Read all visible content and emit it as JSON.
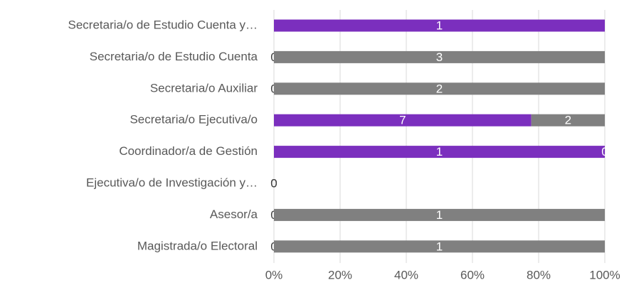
{
  "chart_data": {
    "type": "bar",
    "orientation": "horizontal",
    "stacking": "percent",
    "categories": [
      "Secretaria/o de Estudio Cuenta y…",
      "Secretaria/o de Estudio Cuenta",
      "Secretaria/o Auxiliar",
      "Secretaria/o Ejecutiva/o",
      "Coordinador/a de Gestión",
      "Ejecutiva/o de Investigación y…",
      "Asesor/a",
      "Magistrada/o Electoral"
    ],
    "series": [
      {
        "color": "#7b2fbe",
        "values": [
          1,
          0,
          0,
          7,
          1,
          0,
          0,
          0
        ]
      },
      {
        "color": "#808080",
        "values": [
          null,
          3,
          2,
          2,
          0,
          0,
          1,
          1
        ]
      }
    ],
    "xlim": [
      0,
      100
    ],
    "xticks": [
      {
        "value": 0,
        "label": "0%"
      },
      {
        "value": 20,
        "label": "20%"
      },
      {
        "value": 40,
        "label": "40%"
      },
      {
        "value": 60,
        "label": "60%"
      },
      {
        "value": 80,
        "label": "80%"
      },
      {
        "value": 100,
        "label": "100%"
      }
    ],
    "grid": true
  }
}
